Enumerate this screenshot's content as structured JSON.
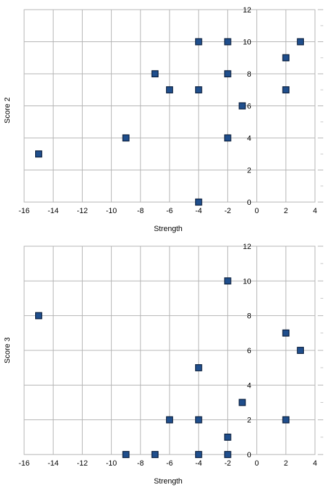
{
  "chart_data": [
    {
      "type": "scatter",
      "title": "",
      "xlabel": "Strength",
      "ylabel": "Score 2",
      "xlim": [
        -16,
        4
      ],
      "ylim": [
        0,
        12
      ],
      "x_ticks": [
        -16,
        -14,
        -12,
        -10,
        -8,
        -6,
        -4,
        -2,
        0,
        2,
        4
      ],
      "y_ticks": [
        0,
        2,
        4,
        6,
        8,
        10,
        12
      ],
      "grid": true,
      "marker_color": "#1f4e8c",
      "points": [
        {
          "x": -15,
          "y": 3
        },
        {
          "x": -9,
          "y": 4
        },
        {
          "x": -7,
          "y": 8
        },
        {
          "x": -6,
          "y": 7
        },
        {
          "x": -4,
          "y": 10
        },
        {
          "x": -4,
          "y": 7
        },
        {
          "x": -4,
          "y": 0
        },
        {
          "x": -2,
          "y": 10
        },
        {
          "x": -2,
          "y": 8
        },
        {
          "x": -2,
          "y": 4
        },
        {
          "x": -1,
          "y": 6
        },
        {
          "x": 2,
          "y": 9
        },
        {
          "x": 2,
          "y": 7
        },
        {
          "x": 3,
          "y": 10
        }
      ]
    },
    {
      "type": "scatter",
      "title": "",
      "xlabel": "Strength",
      "ylabel": "Score 3",
      "xlim": [
        -16,
        4
      ],
      "ylim": [
        0,
        12
      ],
      "x_ticks": [
        -16,
        -14,
        -12,
        -10,
        -8,
        -6,
        -4,
        -2,
        0,
        2,
        4
      ],
      "y_ticks": [
        0,
        2,
        4,
        6,
        8,
        10,
        12
      ],
      "grid": true,
      "marker_color": "#1f4e8c",
      "points": [
        {
          "x": -15,
          "y": 8
        },
        {
          "x": -9,
          "y": 0
        },
        {
          "x": -7,
          "y": 0
        },
        {
          "x": -6,
          "y": 2
        },
        {
          "x": -4,
          "y": 5
        },
        {
          "x": -4,
          "y": 2
        },
        {
          "x": -4,
          "y": 0
        },
        {
          "x": -2,
          "y": 10
        },
        {
          "x": -2,
          "y": 1
        },
        {
          "x": -2,
          "y": 0
        },
        {
          "x": -1,
          "y": 3
        },
        {
          "x": 2,
          "y": 7
        },
        {
          "x": 2,
          "y": 2
        },
        {
          "x": 3,
          "y": 6
        }
      ]
    }
  ]
}
